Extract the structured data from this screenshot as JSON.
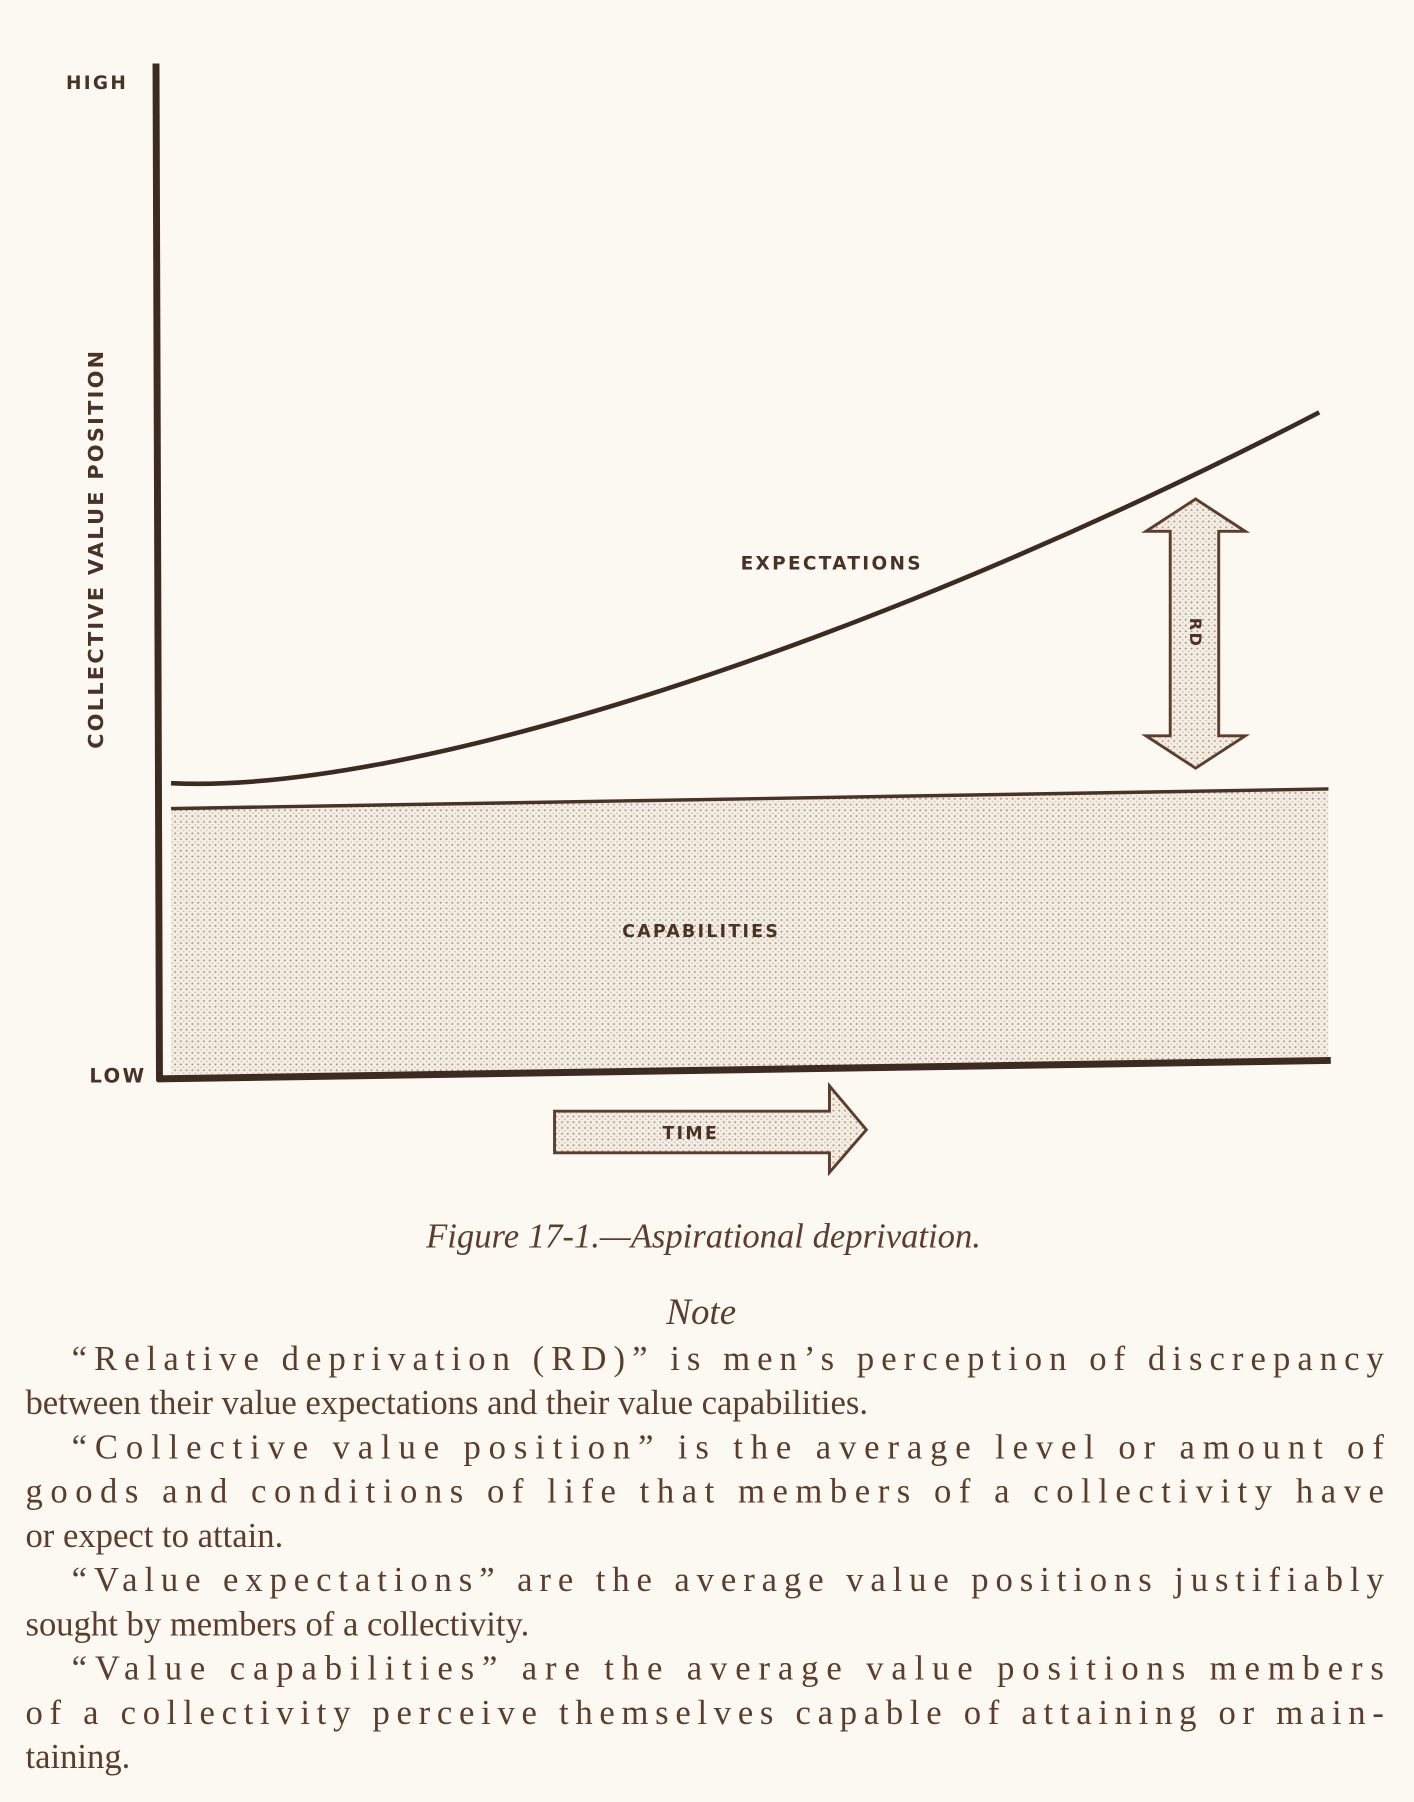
{
  "diagram": {
    "axis_high": "HIGH",
    "axis_low": "LOW",
    "y_axis_label": "COLLECTIVE VALUE POSITION",
    "expectations_label": "EXPECTATIONS",
    "rd_label": "RD",
    "capabilities_label": "CAPABILITIES",
    "time_label": "TIME"
  },
  "caption": "Figure 17-1.—Aspirational deprivation.",
  "note": {
    "heading": "Note",
    "paragraphs": [
      [
        "“Relative deprivation (RD)” is men’s perception of discrepancy",
        "between their value expectations and their value capabilities."
      ],
      [
        "“Collective value position” is the average level or amount of",
        "goods and conditions of life that members of a collectivity have",
        "or expect to attain."
      ],
      [
        "“Value expectations” are the average value positions justifiably",
        "sought by members of a collectivity."
      ],
      [
        "“Value capabilities” are the average value positions members",
        "of a collectivity perceive themselves capable of attaining or main-",
        "taining."
      ]
    ]
  }
}
